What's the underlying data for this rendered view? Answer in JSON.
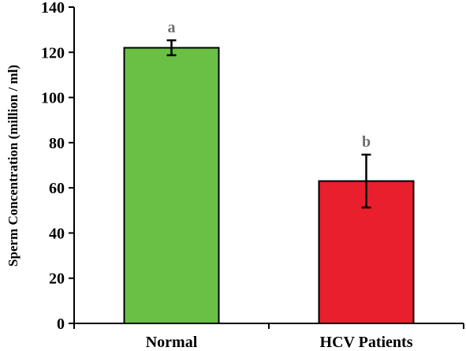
{
  "chart_data": {
    "type": "bar",
    "categories": [
      "Normal",
      "HCV Patients"
    ],
    "values": [
      122,
      63
    ],
    "error": [
      3.3,
      11.7
    ],
    "significance_labels": [
      "a",
      "b"
    ],
    "bar_colors": [
      "#6abf45",
      "#ea1f2d"
    ],
    "significance_color": "#6e6e6e",
    "title": "",
    "xlabel": "",
    "ylabel": "Sperm Concentration (million / ml)",
    "ylim": [
      0,
      140
    ],
    "yticks": [
      0,
      20,
      40,
      60,
      80,
      100,
      120,
      140
    ],
    "grid": false,
    "legend": "none"
  }
}
